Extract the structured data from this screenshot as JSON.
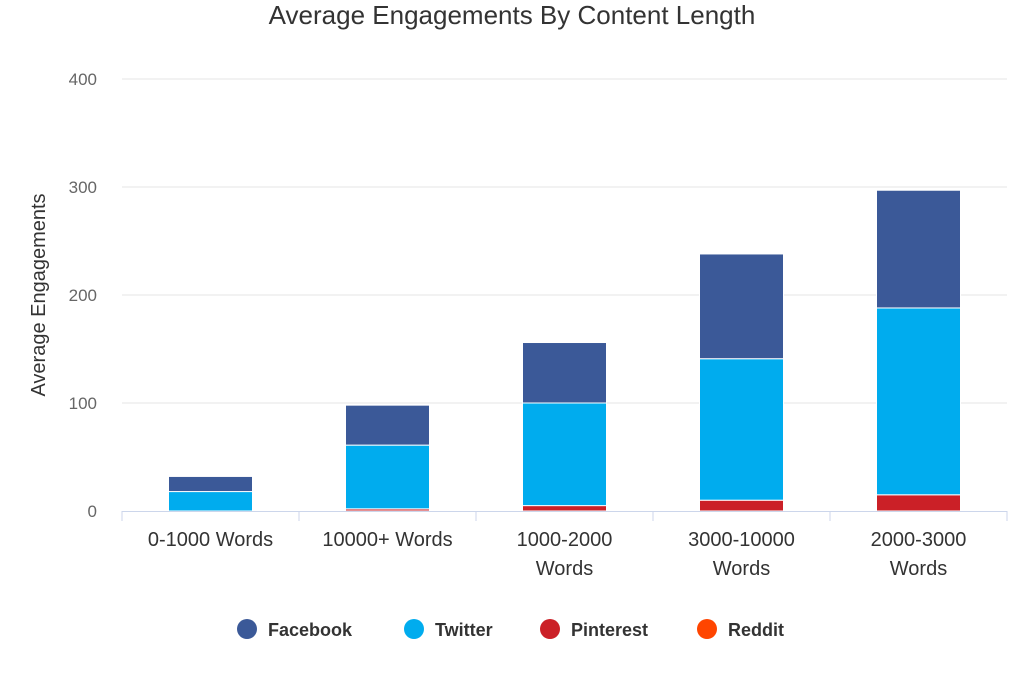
{
  "chart_data": {
    "type": "bar",
    "stacked": true,
    "title": "Average Engagements By Content Length",
    "xlabel": "",
    "ylabel": "Average Engagements",
    "ylim": [
      0,
      400
    ],
    "yticks": [
      0,
      100,
      200,
      300,
      400
    ],
    "grid": true,
    "legend": "bottom",
    "categories": [
      [
        "0-1000 Words"
      ],
      [
        "10000+ Words"
      ],
      [
        "1000-2000",
        "Words"
      ],
      [
        "3000-10000",
        "Words"
      ],
      [
        "2000-3000",
        "Words"
      ]
    ],
    "series": [
      {
        "name": "Facebook",
        "color": "#3b5998",
        "values": [
          14,
          37,
          56,
          97,
          109
        ]
      },
      {
        "name": "Twitter",
        "color": "#00acee",
        "values": [
          18,
          59,
          95,
          131,
          173
        ]
      },
      {
        "name": "Pinterest",
        "color": "#cb2027",
        "values": [
          0,
          2,
          5,
          10,
          15
        ]
      },
      {
        "name": "Reddit",
        "color": "#ff4500",
        "values": [
          0,
          0,
          0,
          0,
          0
        ]
      }
    ]
  }
}
